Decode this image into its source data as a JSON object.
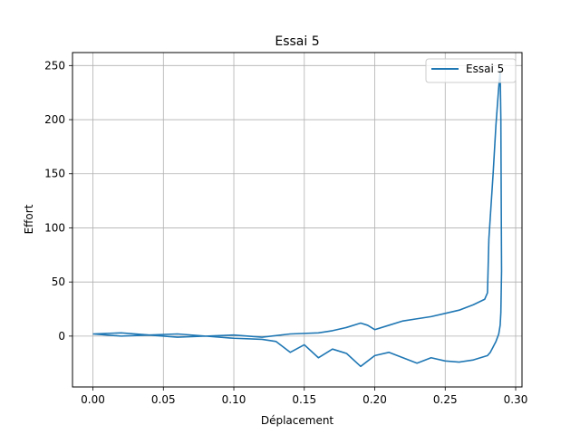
{
  "chart_data": {
    "type": "line",
    "title": "Essai 5",
    "xlabel": "Déplacement",
    "ylabel": "Effort",
    "xlim": [
      -0.0145,
      0.3045
    ],
    "ylim": [
      -47,
      262
    ],
    "xticks": [
      0.0,
      0.05,
      0.1,
      0.15,
      0.2,
      0.25,
      0.3
    ],
    "xtick_labels": [
      "0.00",
      "0.05",
      "0.10",
      "0.15",
      "0.20",
      "0.25",
      "0.30"
    ],
    "yticks": [
      0,
      50,
      100,
      150,
      200,
      250
    ],
    "ytick_labels": [
      "0",
      "50",
      "100",
      "150",
      "200",
      "250"
    ],
    "grid": true,
    "legend": {
      "position": "top-right"
    },
    "colors": {
      "series": "#1f77b4",
      "grid": "#b0b0b0"
    },
    "series": [
      {
        "name": "Essai 5",
        "x": [
          0.0,
          0.02,
          0.04,
          0.06,
          0.08,
          0.1,
          0.12,
          0.14,
          0.16,
          0.17,
          0.18,
          0.19,
          0.195,
          0.2,
          0.21,
          0.22,
          0.23,
          0.24,
          0.25,
          0.26,
          0.27,
          0.278,
          0.28,
          0.281,
          0.284,
          0.286,
          0.288,
          0.289,
          0.2895,
          0.29,
          0.2895,
          0.289,
          0.288,
          0.286,
          0.284,
          0.282,
          0.28,
          0.275,
          0.27,
          0.26,
          0.25,
          0.24,
          0.23,
          0.22,
          0.21,
          0.2,
          0.19,
          0.18,
          0.17,
          0.16,
          0.15,
          0.14,
          0.13,
          0.12,
          0.1,
          0.08,
          0.06,
          0.04,
          0.02,
          0.0
        ],
        "y": [
          2,
          3,
          1,
          2,
          0,
          1,
          -1,
          2,
          3,
          5,
          8,
          12,
          10,
          6,
          10,
          14,
          16,
          18,
          21,
          24,
          29,
          34,
          40,
          90,
          150,
          195,
          230,
          245,
          200,
          60,
          22,
          10,
          2,
          -5,
          -10,
          -15,
          -18,
          -20,
          -22,
          -24,
          -23,
          -20,
          -25,
          -20,
          -15,
          -18,
          -28,
          -16,
          -12,
          -20,
          -8,
          -15,
          -5,
          -3,
          -2,
          0,
          -1,
          1,
          0,
          2
        ]
      }
    ]
  }
}
